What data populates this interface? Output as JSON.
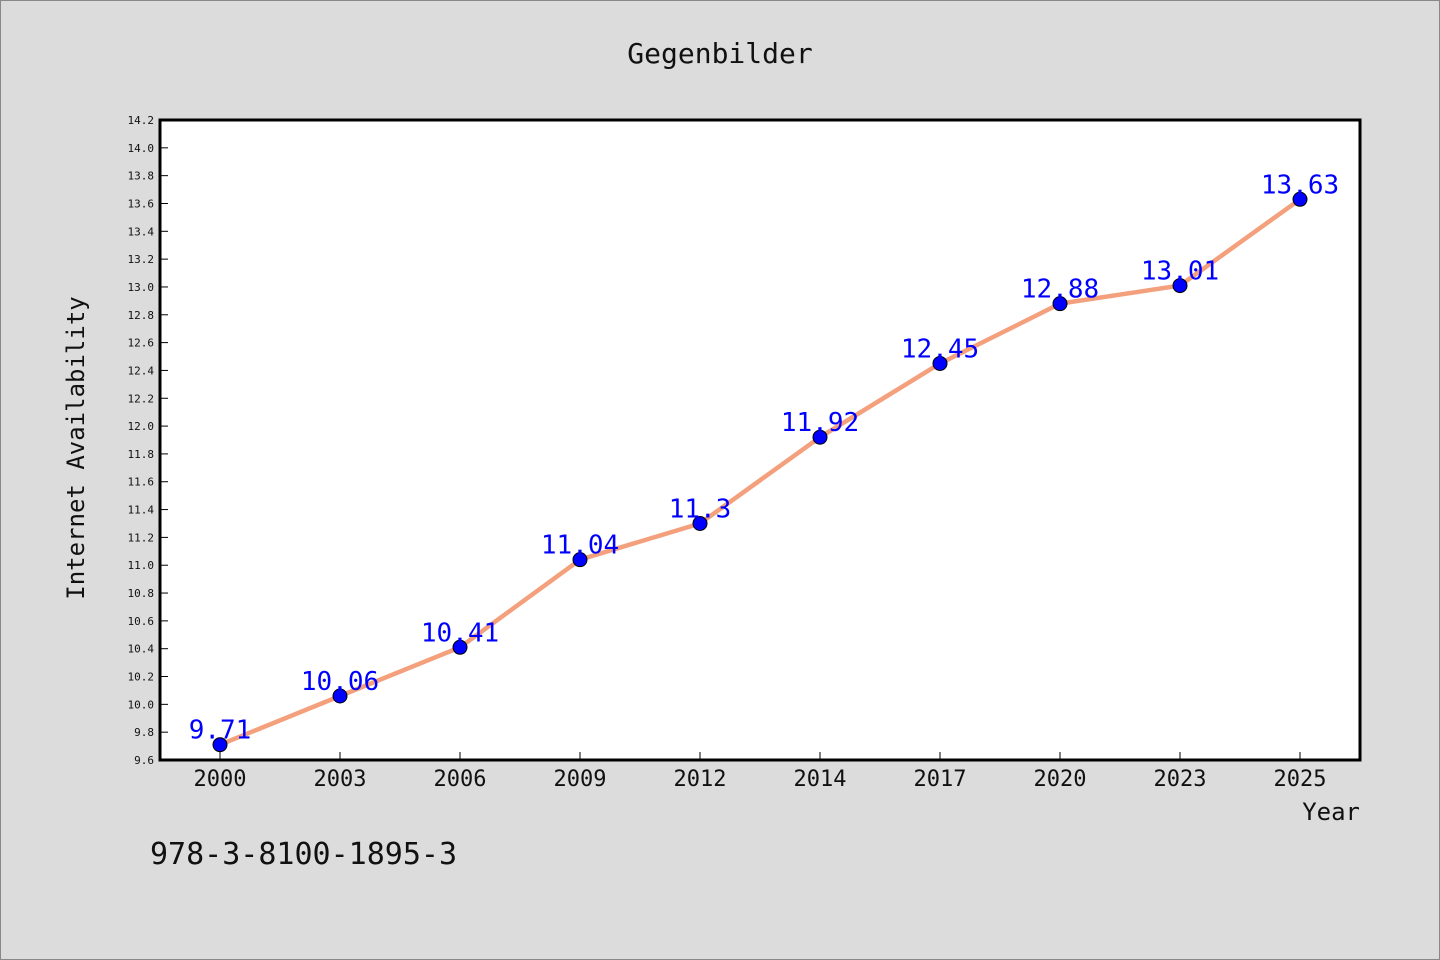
{
  "chart_data": {
    "type": "line",
    "title": "Gegenbilder",
    "xlabel": "Year",
    "ylabel": "Internet Availability",
    "categories": [
      "2000",
      "2003",
      "2006",
      "2009",
      "2012",
      "2014",
      "2017",
      "2020",
      "2023",
      "2025"
    ],
    "series": [
      {
        "values": [
          9.71,
          10.06,
          10.41,
          11.04,
          11.3,
          11.92,
          12.45,
          12.88,
          13.01,
          13.63
        ],
        "data_labels": [
          "9.71",
          "10.06",
          "10.41",
          "11.04",
          "11.3",
          "11.92",
          "12.45",
          "12.88",
          "13.01",
          "13.63"
        ],
        "line_color": "#f4a07c",
        "marker_color": "#0000ff"
      }
    ],
    "ylim": [
      9.6,
      14.2
    ],
    "y_ticks": [
      "9.6",
      "9.8",
      "10.0",
      "10.2",
      "10.4",
      "10.6",
      "10.8",
      "11.0",
      "11.2",
      "11.4",
      "11.6",
      "11.8",
      "12.0",
      "12.2",
      "12.4",
      "12.6",
      "12.8",
      "13.0",
      "13.2",
      "13.4",
      "13.6",
      "13.8",
      "14.0",
      "14.2"
    ],
    "grid": false,
    "legend": "none"
  },
  "footnote": "978-3-8100-1895-3",
  "colors": {
    "background": "#dcdcdc",
    "plot_background": "#ffffff",
    "frame": "#000000"
  }
}
